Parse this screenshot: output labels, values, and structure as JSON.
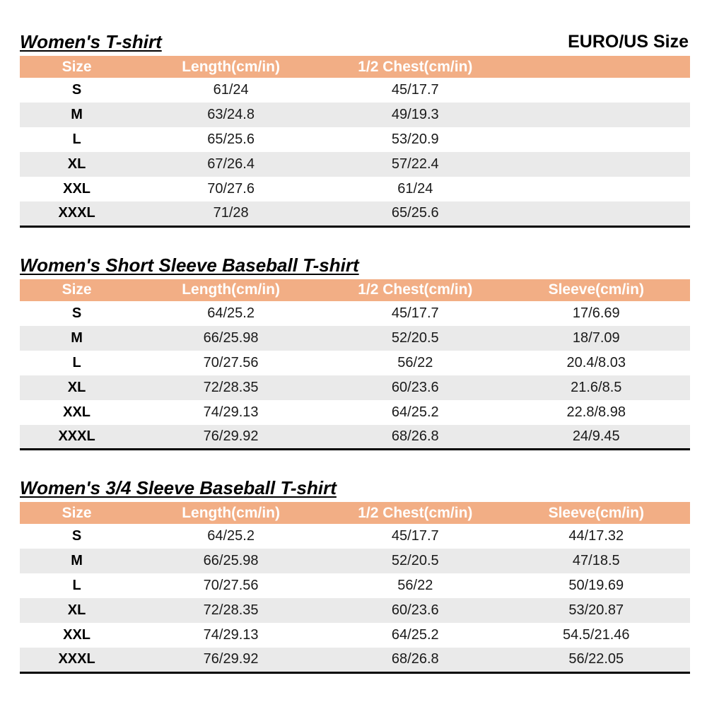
{
  "header": {
    "size_note": "EURO/US Size"
  },
  "colors": {
    "header_bg": "#F2AE85",
    "header_text": "#FFFFFF",
    "stripe_bg": "#EAEAEA",
    "border": "#000000"
  },
  "tables": [
    {
      "title": "Women's T-shirt",
      "columns": [
        "Size",
        "Length(cm/in)",
        "1/2 Chest(cm/in)",
        ""
      ],
      "rows": [
        [
          "S",
          "61/24",
          "45/17.7",
          ""
        ],
        [
          "M",
          "63/24.8",
          "49/19.3",
          ""
        ],
        [
          "L",
          "65/25.6",
          "53/20.9",
          ""
        ],
        [
          "XL",
          "67/26.4",
          "57/22.4",
          ""
        ],
        [
          "XXL",
          "70/27.6",
          "61/24",
          ""
        ],
        [
          "XXXL",
          "71/28",
          "65/25.6",
          ""
        ]
      ]
    },
    {
      "title": "Women's Short Sleeve Baseball T-shirt",
      "columns": [
        "Size",
        "Length(cm/in)",
        "1/2 Chest(cm/in)",
        "Sleeve(cm/in)"
      ],
      "rows": [
        [
          "S",
          "64/25.2",
          "45/17.7",
          "17/6.69"
        ],
        [
          "M",
          "66/25.98",
          "52/20.5",
          "18/7.09"
        ],
        [
          "L",
          "70/27.56",
          "56/22",
          "20.4/8.03"
        ],
        [
          "XL",
          "72/28.35",
          "60/23.6",
          "21.6/8.5"
        ],
        [
          "XXL",
          "74/29.13",
          "64/25.2",
          "22.8/8.98"
        ],
        [
          "XXXL",
          "76/29.92",
          "68/26.8",
          "24/9.45"
        ]
      ]
    },
    {
      "title": "Women's 3/4 Sleeve Baseball T-shirt",
      "columns": [
        "Size",
        "Length(cm/in)",
        "1/2 Chest(cm/in)",
        "Sleeve(cm/in)"
      ],
      "rows": [
        [
          "S",
          "64/25.2",
          "45/17.7",
          "44/17.32"
        ],
        [
          "M",
          "66/25.98",
          "52/20.5",
          "47/18.5"
        ],
        [
          "L",
          "70/27.56",
          "56/22",
          "50/19.69"
        ],
        [
          "XL",
          "72/28.35",
          "60/23.6",
          "53/20.87"
        ],
        [
          "XXL",
          "74/29.13",
          "64/25.2",
          "54.5/21.46"
        ],
        [
          "XXXL",
          "76/29.92",
          "68/26.8",
          "56/22.05"
        ]
      ]
    }
  ]
}
